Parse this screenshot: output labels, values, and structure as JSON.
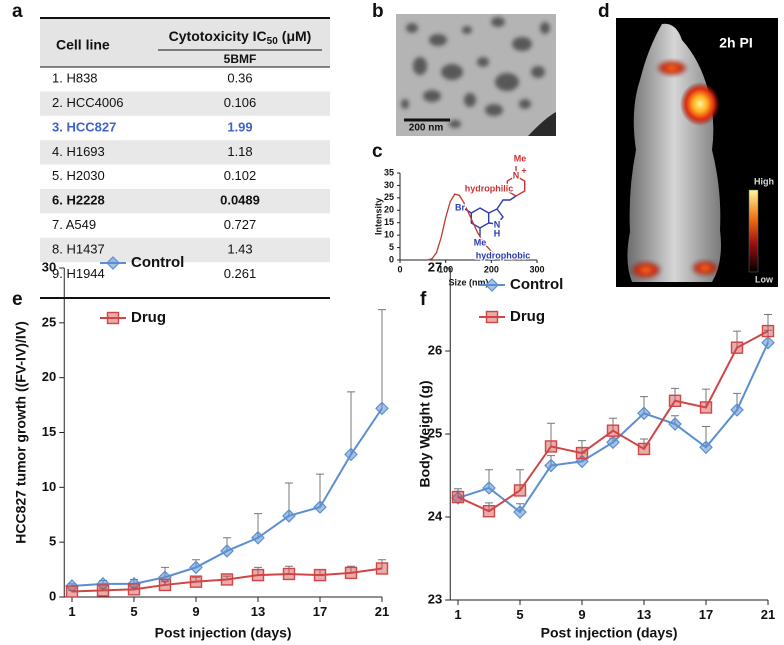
{
  "panel_labels": [
    "a",
    "b",
    "c",
    "d",
    "e",
    "f"
  ],
  "table": {
    "cell_line_header": "Cell line",
    "ic50_header": "Cytotoxicity IC",
    "ic50_subscript": "50",
    "ic50_unit": "(μM)",
    "compound": "5BMF",
    "rows": [
      [
        "1. H838",
        0.36
      ],
      [
        "2. HCC4006",
        0.106
      ],
      [
        "3. HCC827",
        1.99
      ],
      [
        "4. H1693",
        1.18
      ],
      [
        "5. H2030",
        0.102
      ],
      [
        "6. H2228",
        0.0489
      ],
      [
        "7. A549",
        0.727
      ],
      [
        "8. H1437",
        1.43
      ],
      [
        "9. H1944",
        0.261
      ]
    ]
  },
  "tem_image": {
    "scale_bar": "200 nm"
  },
  "imaging": {
    "time": "2h PI",
    "colorbar_high": "High",
    "colorbar_low": "Low"
  },
  "chart_data": [
    {
      "type": "line",
      "x_label": "Size (nm)",
      "y_label": "Intensity",
      "x": [
        60,
        70,
        80,
        90,
        100,
        110,
        120,
        130,
        140,
        150,
        160,
        170,
        180,
        190,
        200,
        210,
        220,
        230,
        240,
        250
      ],
      "series": [
        {
          "color": "#c0392b",
          "values": [
            0,
            0.5,
            3,
            9,
            17,
            23.5,
            26.5,
            26,
            23,
            19,
            15,
            11,
            8,
            5.5,
            3.5,
            2,
            1,
            0.5,
            0.2,
            0
          ]
        }
      ],
      "xlim": [
        0,
        300
      ],
      "ylim": [
        0,
        35
      ],
      "xticks": [
        0,
        100,
        200,
        300
      ],
      "yticks": [
        0,
        5,
        10,
        15,
        20,
        25,
        30,
        35
      ],
      "annotations": [
        "hydrophilic",
        "Me",
        "N",
        "+",
        "Br",
        "N",
        "H",
        "Me",
        "hydrophobic"
      ]
    },
    {
      "type": "line",
      "x_label": "Post injection (days)",
      "y_label": "HCC827 tumor growth ((FV-IV)/IV)",
      "x": [
        1,
        3,
        5,
        7,
        9,
        11,
        13,
        15,
        17,
        19,
        21
      ],
      "series": [
        {
          "name": "Control",
          "color": "#5b8fd0",
          "marker": "diamond",
          "values": [
            1.0,
            1.2,
            1.2,
            1.8,
            2.7,
            4.2,
            5.4,
            7.4,
            8.2,
            13.0,
            17.2
          ],
          "errors": [
            0.2,
            0.3,
            0.4,
            0.9,
            0.7,
            1.2,
            2.2,
            3.0,
            3.0,
            5.7,
            9.0
          ]
        },
        {
          "name": "Drug",
          "color": "#d04545",
          "marker": "square",
          "values": [
            0.5,
            0.6,
            0.7,
            1.1,
            1.4,
            1.6,
            2.0,
            2.1,
            2.0,
            2.2,
            2.6
          ],
          "errors": [
            0.1,
            0.2,
            0.2,
            0.3,
            0.4,
            0.3,
            0.7,
            0.7,
            0.5,
            0.6,
            0.8
          ]
        }
      ],
      "xlim": [
        0.5,
        21
      ],
      "ylim": [
        0,
        30
      ],
      "xticks": [
        1,
        5,
        9,
        13,
        17,
        21
      ],
      "yticks": [
        0,
        5,
        10,
        15,
        20,
        25,
        30
      ]
    },
    {
      "type": "line",
      "x_label": "Post injection (days)",
      "y_label": "Body Weight (g)",
      "x": [
        1,
        3,
        5,
        7,
        9,
        11,
        13,
        15,
        17,
        19,
        21
      ],
      "series": [
        {
          "name": "Control",
          "color": "#5b8fd0",
          "marker": "diamond",
          "values": [
            24.23,
            24.35,
            24.06,
            24.62,
            24.67,
            24.9,
            25.25,
            25.12,
            24.84,
            25.29,
            26.1
          ],
          "errors": [
            0.08,
            0.22,
            0.1,
            0.12,
            0.1,
            0.05,
            0.2,
            0.1,
            0.25,
            0.2,
            0.15
          ]
        },
        {
          "name": "Drug",
          "color": "#d04545",
          "marker": "square",
          "values": [
            24.24,
            24.07,
            24.32,
            24.85,
            24.77,
            25.04,
            24.82,
            25.4,
            25.32,
            26.04,
            26.24
          ],
          "errors": [
            0.1,
            0.1,
            0.25,
            0.28,
            0.15,
            0.15,
            0.12,
            0.15,
            0.22,
            0.2,
            0.2
          ]
        }
      ],
      "xlim": [
        0.5,
        21
      ],
      "ylim": [
        23,
        27
      ],
      "xticks": [
        1,
        5,
        9,
        13,
        17,
        21
      ],
      "yticks": [
        23,
        24,
        25,
        26,
        27
      ]
    }
  ]
}
